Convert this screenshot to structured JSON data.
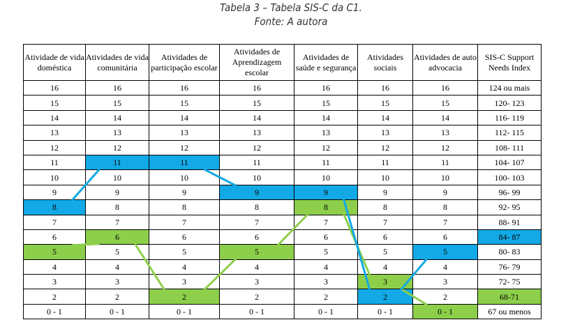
{
  "title": "Tabela 3 – Tabela SIS-C da C1.",
  "source": "Fonte: A autora",
  "colors": {
    "blue": "#12a9e6",
    "green": "#8dcf4a"
  },
  "headers": [
    "Atividade de vida doméstica",
    "Atividades de vida comunitária",
    "Atividades de participação escolar",
    "Atividades de Aprendizagem escolar",
    "Atividades de saúde e segurança",
    "Atividades sociais",
    "Atividades de auto advocacia",
    "SIS-C Support Needs Index"
  ],
  "rows": [
    [
      "16",
      "16",
      "16",
      "16",
      "16",
      "16",
      "16",
      "124 ou mais"
    ],
    [
      "15",
      "15",
      "15",
      "15",
      "15",
      "15",
      "15",
      "120- 123"
    ],
    [
      "14",
      "14",
      "14",
      "14",
      "14",
      "14",
      "14",
      "116- 119"
    ],
    [
      "13",
      "13",
      "13",
      "13",
      "13",
      "13",
      "13",
      "112- 115"
    ],
    [
      "12",
      "12",
      "12",
      "12",
      "12",
      "12",
      "12",
      "108- 111"
    ],
    [
      "11",
      "11",
      "11",
      "11",
      "11",
      "11",
      "11",
      "104- 107"
    ],
    [
      "10",
      "10",
      "10",
      "10",
      "10",
      "10",
      "10",
      "100- 103"
    ],
    [
      "9",
      "9",
      "9",
      "9",
      "9",
      "9",
      "9",
      "96- 99"
    ],
    [
      "8",
      "8",
      "8",
      "8",
      "8",
      "8",
      "8",
      "92- 95"
    ],
    [
      "7",
      "7",
      "7",
      "7",
      "7",
      "7",
      "7",
      "88- 91"
    ],
    [
      "6",
      "6",
      "6",
      "6",
      "6",
      "6",
      "6",
      "84- 87"
    ],
    [
      "5",
      "5",
      "5",
      "5",
      "5",
      "5",
      "5",
      "80- 83"
    ],
    [
      "4",
      "4",
      "4",
      "4",
      "4",
      "4",
      "4",
      "76- 79"
    ],
    [
      "3",
      "3",
      "3",
      "3",
      "3",
      "3",
      "3",
      "72- 75"
    ],
    [
      "2",
      "2",
      "2",
      "2",
      "2",
      "2",
      "2",
      "68-71"
    ],
    [
      "0 - 1",
      "0 - 1",
      "0 - 1",
      "0 - 1",
      "0 - 1",
      "0 - 1",
      "0 - 1",
      "67 ou menos"
    ]
  ],
  "blue_profile": [
    "8",
    "11",
    "11",
    "9",
    "9",
    "2",
    "5",
    "84- 87"
  ],
  "green_profile": [
    "5",
    "6",
    "2",
    "5",
    "8",
    "3",
    "0 - 1",
    "68-71"
  ]
}
